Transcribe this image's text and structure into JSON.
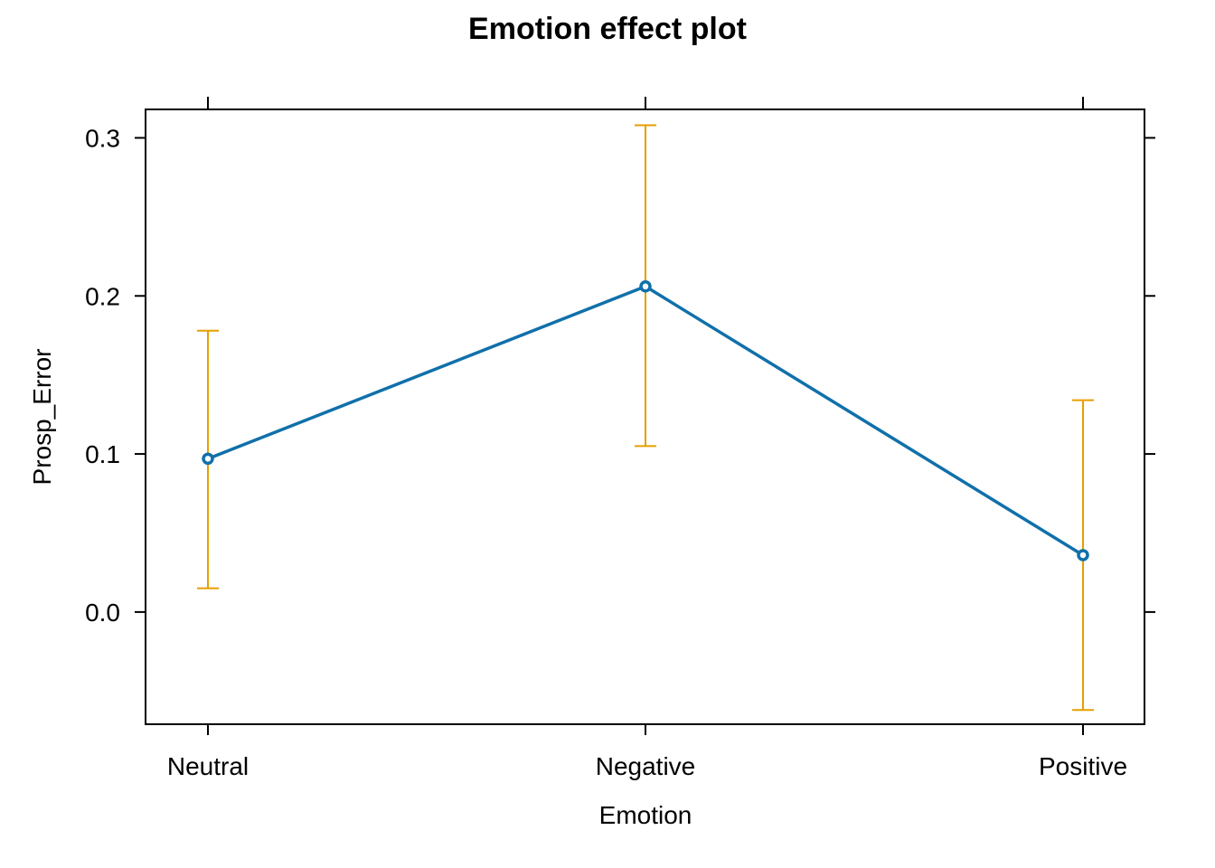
{
  "chart_data": {
    "type": "line",
    "title": "Emotion effect plot",
    "xlabel": "Emotion",
    "ylabel": "Prosp_Error",
    "categories": [
      "Neutral",
      "Negative",
      "Positive"
    ],
    "values": [
      0.097,
      0.206,
      0.036
    ],
    "lower": [
      0.015,
      0.105,
      -0.062
    ],
    "upper": [
      0.178,
      0.308,
      0.134
    ],
    "ylim": [
      -0.071,
      0.318
    ],
    "yticks": [
      0.0,
      0.1,
      0.2,
      0.3
    ],
    "ytick_labels": [
      "0.0",
      "0.1",
      "0.2",
      "0.3"
    ],
    "grid": false,
    "colors": {
      "line": "#1070AA",
      "errorbar": "#E69F00",
      "axis": "#000000"
    }
  }
}
